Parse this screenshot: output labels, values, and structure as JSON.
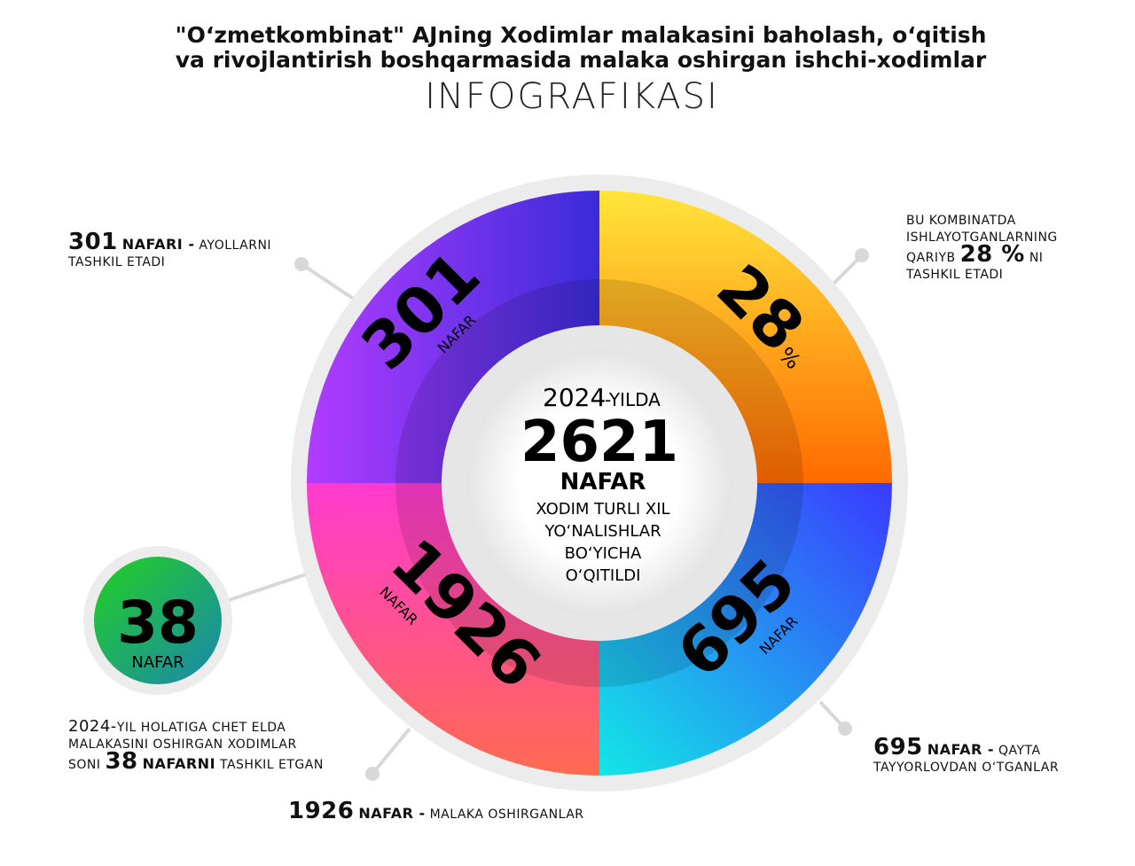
{
  "title_line1": "\"O‘zmetkombinat\" AJning Xodimlar malakasini baholash, o‘qitish",
  "title_line2": "va rivojlantirish boshqarmasida malaka oshirgan ishchi-xodimlar",
  "subtitle": "INFOGRAFIKASI",
  "center": {
    "year": "2024",
    "year_suffix": "-YILDA",
    "total": "2621",
    "unit": "NAFAR",
    "desc1": "XODIM TURLI XIL",
    "desc2": "YO‘NALISHLAR",
    "desc3": "BO‘YICHA",
    "desc4": "O‘QITILDI"
  },
  "segments": [
    {
      "value": "301",
      "unit": "NAFAR",
      "color": "#8a2be2"
    },
    {
      "value": "28",
      "unit": "%",
      "color": "#ffb000"
    },
    {
      "value": "695",
      "unit": "NAFAR",
      "color": "#2f5bff"
    },
    {
      "value": "1926",
      "unit": "NAFAR",
      "color": "#ff3d7f"
    }
  ],
  "badge": {
    "value": "38",
    "unit": "NAFAR",
    "color": "#1ec22a"
  },
  "notes": {
    "women": {
      "num": "301",
      "bold": "NAFARI -",
      "text1": "AYOLLARNI",
      "text2": "TASHKIL ETADI"
    },
    "share": {
      "l1": "Bu kombinatda",
      "l2": "ishlayotganlarning",
      "l3a": "qariyb",
      "num": "28 %",
      "l3b": "ni",
      "l4": "tashkil etadi"
    },
    "abroad": {
      "l1num": "2024-",
      "l1": "yil holatiga chet elda",
      "l2": "malakasini oshirgan xodimlar",
      "l3a": "soni",
      "num": "38",
      "bold": "NAFARNI",
      "l3b": "tashkil etgan"
    },
    "trained": {
      "num": "1926",
      "bold": "NAFAR -",
      "text": "MALAKA OSHIRGANLAR"
    },
    "retrained": {
      "num": "695",
      "bold": "NAFAR -",
      "text1": "QAYTA",
      "text2": "TAYYORLOVDAN O‘TGANLAR"
    }
  }
}
